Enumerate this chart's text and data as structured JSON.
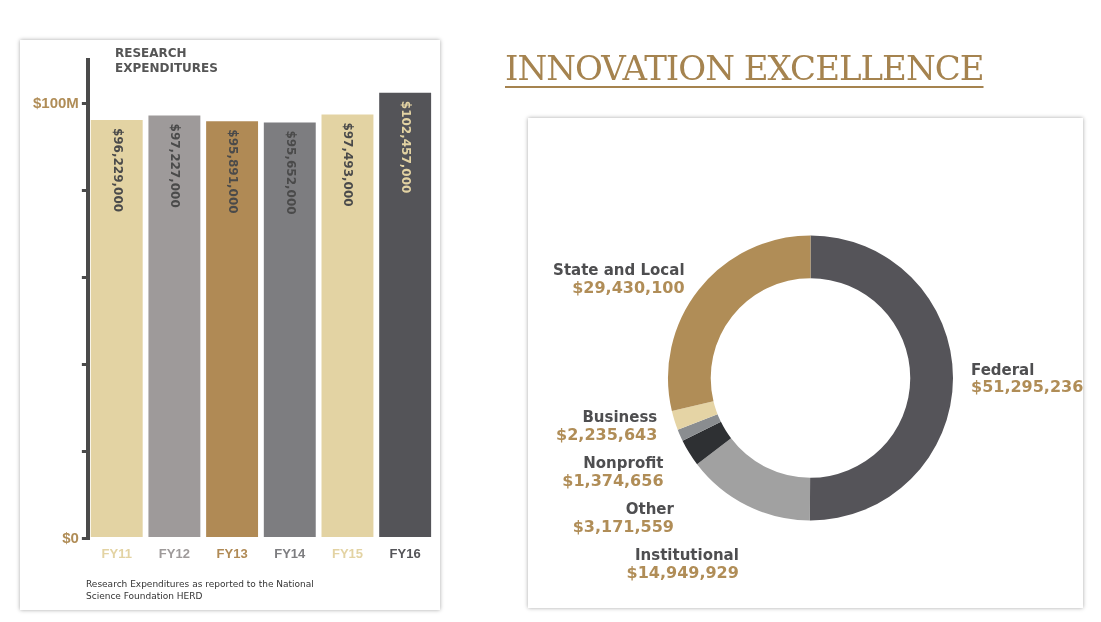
{
  "chart_data": [
    {
      "type": "bar",
      "title": "RESEARCH EXPENDITURES",
      "categories": [
        "FY11",
        "FY12",
        "FY13",
        "FY14",
        "FY15",
        "FY16"
      ],
      "values": [
        96229000,
        97227000,
        95891000,
        95652000,
        97493000,
        102457000
      ],
      "colors": [
        "#e3d3a3",
        "#9e9a9a",
        "#b08a55",
        "#7d7d80",
        "#e3d3a3",
        "#545458"
      ],
      "value_labels": [
        "$96,229,000",
        "$97,227,000",
        "$95,891,000",
        "$95,652,000",
        "$97,493,000",
        "$102,457,000"
      ],
      "ylim": [
        0,
        110000000
      ],
      "yticks": [
        {
          "value": 0,
          "label": "$0"
        },
        {
          "value": 20000000,
          "label": null
        },
        {
          "value": 40000000,
          "label": null
        },
        {
          "value": 60000000,
          "label": null
        },
        {
          "value": 80000000,
          "label": null
        },
        {
          "value": 100000000,
          "label": "$100M"
        }
      ],
      "grid": false,
      "legend": false,
      "annotations": [
        "Research Expenditures as reported to the National Science Foundation HERD"
      ]
    },
    {
      "type": "donut",
      "title": "INNOVATION EXCELLENCE",
      "categories": [
        "Federal",
        "Institutional",
        "Other",
        "Nonprofit",
        "Business",
        "State and Local"
      ],
      "values": [
        51295236,
        14949929,
        3171559,
        1374656,
        2235643,
        29430100
      ],
      "colors": [
        "#555459",
        "#a1a1a1",
        "#2e3033",
        "#8a8d90",
        "#e5d4a5",
        "#b08d57"
      ],
      "value_labels": [
        "$51,295,236",
        "$14,949,929",
        "$3,171,559",
        "$1,374,656",
        "$2,235,643",
        "$29,430,100"
      ],
      "legend": false
    }
  ]
}
